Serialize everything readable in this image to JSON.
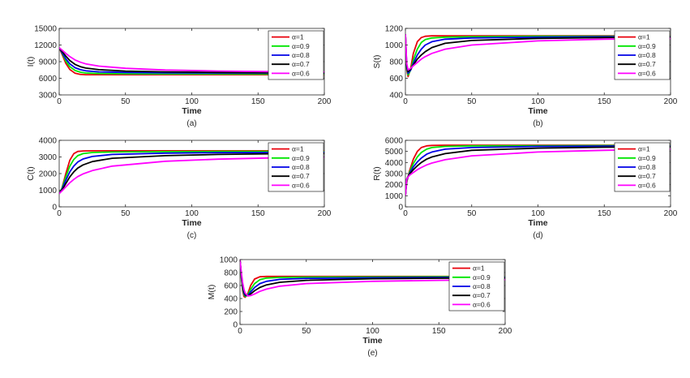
{
  "colors": {
    "alpha_1": "#e8000b",
    "alpha_0_9": "#00e600",
    "alpha_0_8": "#0000e6",
    "alpha_0_7": "#000000",
    "alpha_0_6": "#ff00ff"
  },
  "chart_data": [
    {
      "type": "line",
      "panel_label": "(a)",
      "xlabel": "Time",
      "ylabel": "I(t)",
      "xlim": [
        0,
        200
      ],
      "ylim": [
        3000,
        15000
      ],
      "xticks": [
        0,
        50,
        100,
        150,
        200
      ],
      "yticks": [
        3000,
        6000,
        9000,
        12000,
        15000
      ],
      "legend_position": "top-right",
      "grid": false,
      "series": [
        {
          "name": "α=1",
          "x": [
            0,
            2,
            5,
            8,
            12,
            16,
            20,
            30,
            50,
            80,
            120,
            160,
            200
          ],
          "values": [
            11500,
            10400,
            8700,
            7600,
            6900,
            6700,
            6650,
            6650,
            6650,
            6650,
            6650,
            6650,
            6650
          ]
        },
        {
          "name": "α=0.9",
          "x": [
            0,
            2,
            5,
            8,
            12,
            16,
            20,
            30,
            50,
            80,
            120,
            160,
            200
          ],
          "values": [
            11500,
            10600,
            9100,
            8100,
            7400,
            7100,
            6950,
            6850,
            6800,
            6780,
            6770,
            6760,
            6760
          ]
        },
        {
          "name": "α=0.8",
          "x": [
            0,
            2,
            5,
            8,
            12,
            16,
            20,
            30,
            50,
            80,
            120,
            160,
            200
          ],
          "values": [
            11500,
            10700,
            9500,
            8600,
            7900,
            7550,
            7350,
            7150,
            7050,
            6980,
            6940,
            6920,
            6900
          ]
        },
        {
          "name": "α=0.7",
          "x": [
            0,
            2,
            5,
            8,
            12,
            16,
            20,
            30,
            50,
            80,
            120,
            160,
            200
          ],
          "values": [
            11500,
            10900,
            10000,
            9200,
            8500,
            8100,
            7850,
            7550,
            7300,
            7150,
            7050,
            7000,
            6980
          ]
        },
        {
          "name": "α=0.6",
          "x": [
            0,
            2,
            5,
            8,
            12,
            16,
            20,
            30,
            50,
            80,
            120,
            160,
            200
          ],
          "values": [
            11500,
            11100,
            10500,
            9900,
            9300,
            8900,
            8600,
            8200,
            7800,
            7500,
            7300,
            7200,
            7150
          ]
        }
      ]
    },
    {
      "type": "line",
      "panel_label": "(b)",
      "xlabel": "Time",
      "ylabel": "S(t)",
      "xlim": [
        0,
        200
      ],
      "ylim": [
        400,
        1200
      ],
      "xticks": [
        0,
        50,
        100,
        150,
        200
      ],
      "yticks": [
        400,
        600,
        800,
        1000,
        1200
      ],
      "legend_position": "top-right",
      "grid": false,
      "series": [
        {
          "name": "α=1",
          "x": [
            0,
            1,
            2,
            4,
            6,
            9,
            12,
            15,
            20,
            30,
            50,
            100,
            150,
            200
          ],
          "values": [
            1130,
            700,
            620,
            720,
            900,
            1040,
            1090,
            1105,
            1110,
            1110,
            1110,
            1110,
            1110,
            1110
          ]
        },
        {
          "name": "α=0.9",
          "x": [
            0,
            1,
            2,
            4,
            6,
            9,
            12,
            15,
            20,
            30,
            50,
            100,
            150,
            200
          ],
          "values": [
            1130,
            720,
            640,
            700,
            820,
            950,
            1030,
            1065,
            1085,
            1095,
            1100,
            1105,
            1105,
            1105
          ]
        },
        {
          "name": "α=0.8",
          "x": [
            0,
            1,
            2,
            4,
            6,
            9,
            12,
            15,
            20,
            30,
            50,
            100,
            150,
            200
          ],
          "values": [
            1130,
            740,
            660,
            700,
            780,
            880,
            950,
            1000,
            1040,
            1070,
            1085,
            1095,
            1100,
            1100
          ]
        },
        {
          "name": "α=0.7",
          "x": [
            0,
            1,
            2,
            4,
            6,
            9,
            12,
            15,
            20,
            30,
            50,
            100,
            150,
            200
          ],
          "values": [
            1130,
            760,
            680,
            710,
            760,
            830,
            880,
            920,
            970,
            1020,
            1055,
            1080,
            1090,
            1095
          ]
        },
        {
          "name": "α=0.6",
          "x": [
            0,
            1,
            2,
            4,
            6,
            9,
            12,
            15,
            20,
            30,
            50,
            100,
            150,
            200
          ],
          "values": [
            1130,
            780,
            700,
            720,
            750,
            790,
            830,
            860,
            900,
            950,
            1000,
            1050,
            1070,
            1080
          ]
        }
      ]
    },
    {
      "type": "line",
      "panel_label": "(c)",
      "xlabel": "Time",
      "ylabel": "C(t)",
      "xlim": [
        0,
        200
      ],
      "ylim": [
        0,
        4000
      ],
      "xticks": [
        0,
        50,
        100,
        150,
        200
      ],
      "yticks": [
        0,
        1000,
        2000,
        3000,
        4000
      ],
      "legend_position": "top-right",
      "grid": false,
      "series": [
        {
          "name": "α=1",
          "x": [
            0,
            2,
            5,
            8,
            11,
            14,
            18,
            25,
            40,
            80,
            120,
            160,
            200
          ],
          "values": [
            800,
            1100,
            2000,
            2800,
            3200,
            3330,
            3360,
            3370,
            3370,
            3370,
            3370,
            3370,
            3370
          ]
        },
        {
          "name": "α=0.9",
          "x": [
            0,
            2,
            5,
            8,
            11,
            14,
            18,
            25,
            40,
            80,
            120,
            160,
            200
          ],
          "values": [
            800,
            1100,
            1800,
            2450,
            2850,
            3080,
            3200,
            3270,
            3300,
            3320,
            3330,
            3330,
            3330
          ]
        },
        {
          "name": "α=0.8",
          "x": [
            0,
            2,
            5,
            8,
            11,
            14,
            18,
            25,
            40,
            80,
            120,
            160,
            200
          ],
          "values": [
            800,
            1050,
            1600,
            2100,
            2450,
            2700,
            2880,
            3030,
            3150,
            3230,
            3260,
            3270,
            3280
          ]
        },
        {
          "name": "α=0.7",
          "x": [
            0,
            2,
            5,
            8,
            11,
            14,
            18,
            25,
            40,
            80,
            120,
            160,
            200
          ],
          "values": [
            800,
            1000,
            1400,
            1800,
            2100,
            2330,
            2520,
            2720,
            2920,
            3080,
            3150,
            3190,
            3210
          ]
        },
        {
          "name": "α=0.6",
          "x": [
            0,
            2,
            5,
            8,
            11,
            14,
            18,
            25,
            40,
            80,
            120,
            160,
            200
          ],
          "values": [
            800,
            950,
            1200,
            1450,
            1650,
            1820,
            1980,
            2180,
            2450,
            2740,
            2870,
            2940,
            2990
          ]
        }
      ]
    },
    {
      "type": "line",
      "panel_label": "(d)",
      "xlabel": "Time",
      "ylabel": "R(t)",
      "xlim": [
        0,
        200
      ],
      "ylim": [
        0,
        6000
      ],
      "xticks": [
        0,
        50,
        100,
        150,
        200
      ],
      "yticks": [
        0,
        1000,
        2000,
        3000,
        4000,
        5000,
        6000
      ],
      "legend_position": "top-right",
      "grid": false,
      "series": [
        {
          "name": "α=1",
          "x": [
            0,
            1,
            3,
            6,
            9,
            12,
            16,
            20,
            30,
            50,
            100,
            150,
            200
          ],
          "values": [
            1000,
            2200,
            3200,
            4300,
            5000,
            5350,
            5500,
            5540,
            5560,
            5560,
            5560,
            5560,
            5560
          ]
        },
        {
          "name": "α=0.9",
          "x": [
            0,
            1,
            3,
            6,
            9,
            12,
            16,
            20,
            30,
            50,
            100,
            150,
            200
          ],
          "values": [
            1000,
            2300,
            3100,
            3900,
            4500,
            4900,
            5200,
            5350,
            5450,
            5500,
            5520,
            5530,
            5530
          ]
        },
        {
          "name": "α=0.8",
          "x": [
            0,
            1,
            3,
            6,
            9,
            12,
            16,
            20,
            30,
            50,
            100,
            150,
            200
          ],
          "values": [
            1000,
            2400,
            3000,
            3600,
            4050,
            4400,
            4750,
            4950,
            5200,
            5350,
            5450,
            5480,
            5490
          ]
        },
        {
          "name": "α=0.7",
          "x": [
            0,
            1,
            3,
            6,
            9,
            12,
            16,
            20,
            30,
            50,
            100,
            150,
            200
          ],
          "values": [
            1000,
            2500,
            2950,
            3350,
            3700,
            4000,
            4300,
            4500,
            4800,
            5100,
            5300,
            5380,
            5420
          ]
        },
        {
          "name": "α=0.6",
          "x": [
            0,
            1,
            3,
            6,
            9,
            12,
            16,
            20,
            30,
            50,
            100,
            150,
            200
          ],
          "values": [
            1000,
            2500,
            2850,
            3100,
            3350,
            3550,
            3780,
            3950,
            4250,
            4600,
            4950,
            5100,
            5200
          ]
        }
      ]
    },
    {
      "type": "line",
      "panel_label": "(e)",
      "xlabel": "Time",
      "ylabel": "M(t)",
      "xlim": [
        0,
        200
      ],
      "ylim": [
        0,
        1000
      ],
      "xticks": [
        0,
        50,
        100,
        150,
        200
      ],
      "yticks": [
        0,
        200,
        400,
        600,
        800,
        1000
      ],
      "legend_position": "top-right",
      "grid": false,
      "series": [
        {
          "name": "α=1",
          "x": [
            0,
            1,
            2,
            3,
            4,
            6,
            8,
            11,
            15,
            20,
            30,
            50,
            100,
            150,
            200
          ],
          "values": [
            1000,
            720,
            520,
            430,
            420,
            480,
            600,
            700,
            735,
            740,
            740,
            740,
            740,
            740,
            740
          ]
        },
        {
          "name": "α=0.9",
          "x": [
            0,
            1,
            2,
            3,
            4,
            6,
            8,
            11,
            15,
            20,
            30,
            50,
            100,
            150,
            200
          ],
          "values": [
            1000,
            740,
            550,
            460,
            430,
            460,
            540,
            630,
            690,
            715,
            725,
            730,
            733,
            735,
            735
          ]
        },
        {
          "name": "α=0.8",
          "x": [
            0,
            1,
            2,
            3,
            4,
            6,
            8,
            11,
            15,
            20,
            30,
            50,
            100,
            150,
            200
          ],
          "values": [
            1000,
            760,
            580,
            480,
            445,
            450,
            500,
            570,
            630,
            665,
            695,
            710,
            720,
            725,
            728
          ]
        },
        {
          "name": "α=0.7",
          "x": [
            0,
            1,
            2,
            3,
            4,
            6,
            8,
            11,
            15,
            20,
            30,
            50,
            100,
            150,
            200
          ],
          "values": [
            1000,
            780,
            610,
            510,
            460,
            440,
            470,
            520,
            570,
            610,
            650,
            680,
            705,
            712,
            718
          ]
        },
        {
          "name": "α=0.6",
          "x": [
            0,
            1,
            2,
            3,
            4,
            6,
            8,
            11,
            15,
            20,
            30,
            50,
            100,
            150,
            200
          ],
          "values": [
            1000,
            800,
            640,
            540,
            480,
            440,
            445,
            470,
            510,
            545,
            590,
            630,
            665,
            680,
            690
          ]
        }
      ]
    }
  ]
}
